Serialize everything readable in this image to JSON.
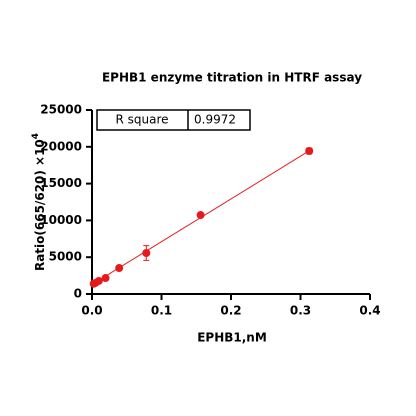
{
  "chart_data": {
    "type": "scatter",
    "title": "EPHB1 enzyme titration in HTRF assay",
    "xlabel": "EPHB1,nM",
    "ylabel": "Ratio(665/620) ×10",
    "ylabel_sup": "4",
    "x": [
      0.3125,
      0.15625,
      0.078125,
      0.0390625,
      0.01953,
      0.009766,
      0.004883,
      0.002441
    ],
    "series": [
      {
        "color": "#e8191d",
        "values": [
          19430,
          10730,
          5570,
          3530,
          2170,
          1770,
          1500,
          1400
        ],
        "errors": [
          400,
          150,
          1000,
          200,
          120,
          100,
          100,
          100
        ]
      }
    ],
    "fit": {
      "color": "#e8191d",
      "x": [
        0,
        0.3125
      ],
      "y": [
        1300,
        19450
      ]
    },
    "stats": {
      "label": "R square",
      "value": 0.9972
    },
    "xlim": [
      0,
      0.4
    ],
    "ylim": [
      0,
      25000
    ],
    "xticks": [
      {
        "value": 0,
        "label": "0.0"
      },
      0.1,
      0.2,
      0.3,
      0.4
    ],
    "yticks": [
      0,
      5000,
      10000,
      15000,
      20000,
      25000
    ]
  }
}
